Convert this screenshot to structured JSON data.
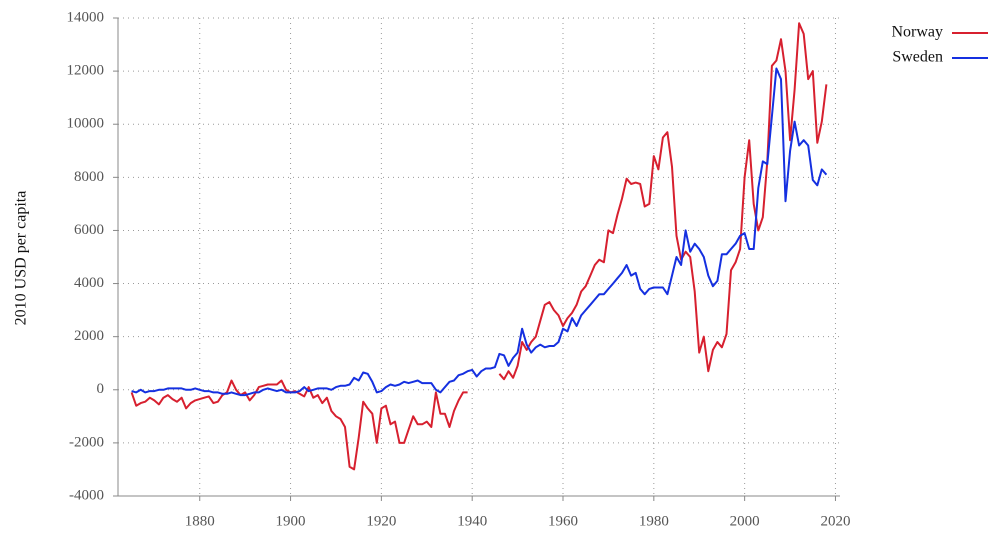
{
  "chart_data": {
    "type": "line",
    "y_label": "2010 USD per capita",
    "x": [
      1865,
      1866,
      1867,
      1868,
      1869,
      1870,
      1871,
      1872,
      1873,
      1874,
      1875,
      1876,
      1877,
      1878,
      1879,
      1880,
      1881,
      1882,
      1883,
      1884,
      1885,
      1886,
      1887,
      1888,
      1889,
      1890,
      1891,
      1892,
      1893,
      1894,
      1895,
      1896,
      1897,
      1898,
      1899,
      1900,
      1901,
      1902,
      1903,
      1904,
      1905,
      1906,
      1907,
      1908,
      1909,
      1910,
      1911,
      1912,
      1913,
      1914,
      1915,
      1916,
      1917,
      1918,
      1919,
      1920,
      1921,
      1922,
      1923,
      1924,
      1925,
      1926,
      1927,
      1928,
      1929,
      1930,
      1931,
      1932,
      1933,
      1934,
      1935,
      1936,
      1937,
      1938,
      1939,
      1940,
      1941,
      1942,
      1943,
      1944,
      1945,
      1946,
      1947,
      1948,
      1949,
      1950,
      1951,
      1952,
      1953,
      1954,
      1955,
      1956,
      1957,
      1958,
      1959,
      1960,
      1961,
      1962,
      1963,
      1964,
      1965,
      1966,
      1967,
      1968,
      1969,
      1970,
      1971,
      1972,
      1973,
      1974,
      1975,
      1976,
      1977,
      1978,
      1979,
      1980,
      1981,
      1982,
      1983,
      1984,
      1985,
      1986,
      1987,
      1988,
      1989,
      1990,
      1991,
      1992,
      1993,
      1994,
      1995,
      1996,
      1997,
      1998,
      1999,
      2000,
      2001,
      2002,
      2003,
      2004,
      2005,
      2006,
      2007,
      2008,
      2009,
      2010,
      2011,
      2012,
      2013,
      2014,
      2015,
      2016,
      2017,
      2018
    ],
    "series": [
      {
        "name": "Norway",
        "color": "#d7202f",
        "values": [
          -100,
          -600,
          -500,
          -450,
          -300,
          -400,
          -550,
          -300,
          -200,
          -350,
          -450,
          -300,
          -700,
          -500,
          -400,
          -350,
          -300,
          -250,
          -500,
          -450,
          -200,
          -100,
          350,
          0,
          -200,
          -100,
          -400,
          -200,
          100,
          150,
          200,
          200,
          200,
          350,
          0,
          -100,
          -50,
          -150,
          -250,
          100,
          -300,
          -200,
          -500,
          -300,
          -800,
          -1000,
          -1100,
          -1400,
          -2900,
          -3000,
          -1800,
          -450,
          -700,
          -900,
          -2000,
          -700,
          -600,
          -1300,
          -1200,
          -2000,
          -2000,
          -1500,
          -1000,
          -1300,
          -1300,
          -1200,
          -1400,
          -100,
          -900,
          -900,
          -1400,
          -800,
          -400,
          -100,
          -100,
          null,
          null,
          null,
          null,
          null,
          null,
          600,
          400,
          700,
          450,
          900,
          1800,
          1500,
          1800,
          2000,
          2600,
          3200,
          3300,
          3000,
          2800,
          2400,
          2700,
          2900,
          3200,
          3700,
          3900,
          4300,
          4700,
          4900,
          4800,
          6000,
          5900,
          6600,
          7200,
          7950,
          7750,
          7800,
          7750,
          6900,
          7000,
          8800,
          8300,
          9500,
          9700,
          8400,
          5800,
          4900,
          5200,
          5000,
          3700,
          1400,
          2000,
          700,
          1500,
          1800,
          1600,
          2100,
          4500,
          4800,
          5300,
          8000,
          9400,
          7000,
          6000,
          6500,
          8600,
          12200,
          12400,
          13200,
          12000,
          9400,
          11300,
          13800,
          13400,
          11700,
          12000,
          9300,
          10100,
          11500
        ]
      },
      {
        "name": "Sweden",
        "color": "#1530e0",
        "values": [
          -50,
          -100,
          0,
          -100,
          -50,
          -50,
          0,
          0,
          50,
          50,
          50,
          50,
          0,
          0,
          50,
          0,
          -50,
          -50,
          -100,
          -100,
          -150,
          -150,
          -100,
          -150,
          -200,
          -200,
          -150,
          -100,
          -100,
          0,
          50,
          0,
          -50,
          0,
          -100,
          -100,
          -100,
          -50,
          100,
          -50,
          0,
          50,
          50,
          50,
          0,
          100,
          150,
          150,
          200,
          450,
          350,
          650,
          600,
          300,
          -100,
          -50,
          100,
          200,
          150,
          200,
          300,
          250,
          300,
          350,
          250,
          250,
          250,
          0,
          -100,
          100,
          300,
          350,
          550,
          600,
          700,
          750,
          500,
          700,
          800,
          800,
          850,
          1350,
          1300,
          900,
          1200,
          1400,
          2300,
          1700,
          1400,
          1600,
          1700,
          1600,
          1650,
          1650,
          1800,
          2300,
          2200,
          2700,
          2400,
          2800,
          3000,
          3200,
          3400,
          3600,
          3600,
          3800,
          4000,
          4200,
          4400,
          4700,
          4300,
          4400,
          3800,
          3600,
          3800,
          3850,
          3850,
          3850,
          3600,
          4300,
          5000,
          4700,
          6000,
          5200,
          5500,
          5300,
          5000,
          4300,
          3900,
          4100,
          5100,
          5100,
          5300,
          5500,
          5800,
          5900,
          5300,
          5300,
          7600,
          8600,
          8500,
          10300,
          12100,
          11700,
          7100,
          9000,
          10100,
          9200,
          9400,
          9200,
          7900,
          7700,
          8300,
          8100
        ]
      }
    ],
    "xlim": [
      1862,
      2021
    ],
    "xticks": [
      1880,
      1900,
      1920,
      1940,
      1960,
      1980,
      2000,
      2020
    ],
    "ylim": [
      -4000,
      14000
    ],
    "yticks": [
      -4000,
      -2000,
      0,
      2000,
      4000,
      6000,
      8000,
      10000,
      12000,
      14000
    ],
    "grid": true,
    "legend": "top-right"
  }
}
